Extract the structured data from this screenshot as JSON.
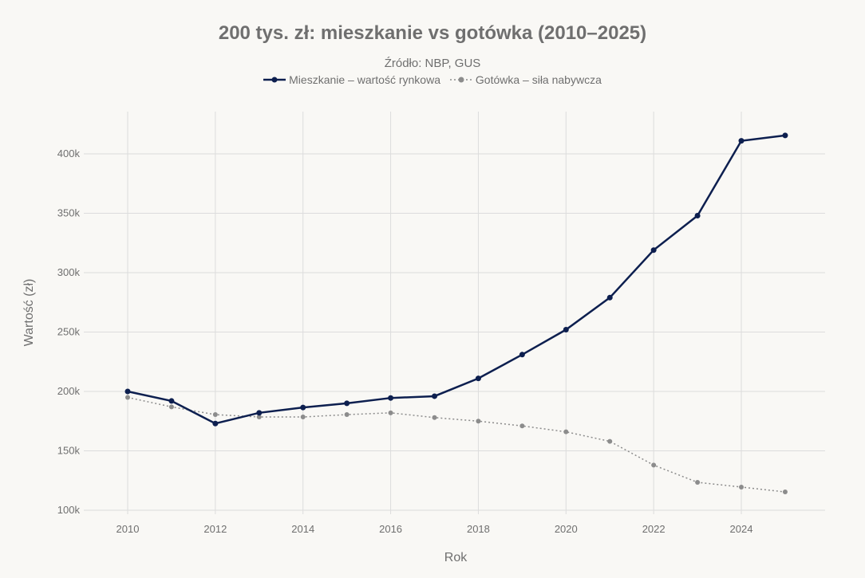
{
  "chart_data": {
    "type": "line",
    "title": "200 tys. zł: mieszkanie vs gotówka (2010–2025)",
    "subtitle": "Źródło: NBP, GUS",
    "xlabel": "Rok",
    "ylabel": "Wartość (zł)",
    "x": [
      2010,
      2011,
      2012,
      2013,
      2014,
      2015,
      2016,
      2017,
      2018,
      2019,
      2020,
      2021,
      2022,
      2023,
      2024,
      2025
    ],
    "xticks": [
      "2010",
      "2012",
      "2014",
      "2016",
      "2018",
      "2020",
      "2022",
      "2024"
    ],
    "yticks": [
      "100k",
      "150k",
      "200k",
      "250k",
      "300k",
      "350k",
      "400k"
    ],
    "ylim": [
      100000,
      435000
    ],
    "grid": true,
    "legend_position": "top",
    "series": [
      {
        "name": "Mieszkanie – wartość rynkowa",
        "color": "#0d1f4f",
        "style": "solid",
        "values": [
          200000,
          192000,
          173000,
          182000,
          186500,
          190000,
          194500,
          196000,
          211000,
          231000,
          252000,
          279000,
          319000,
          348000,
          411000,
          415500
        ]
      },
      {
        "name": "Gotówka – siła nabywcza",
        "color": "#8c8c8c",
        "style": "dotted",
        "values": [
          195000,
          187000,
          180500,
          178500,
          178500,
          180500,
          182000,
          178000,
          175000,
          171000,
          166000,
          158000,
          138000,
          123500,
          119500,
          115400
        ]
      }
    ]
  }
}
